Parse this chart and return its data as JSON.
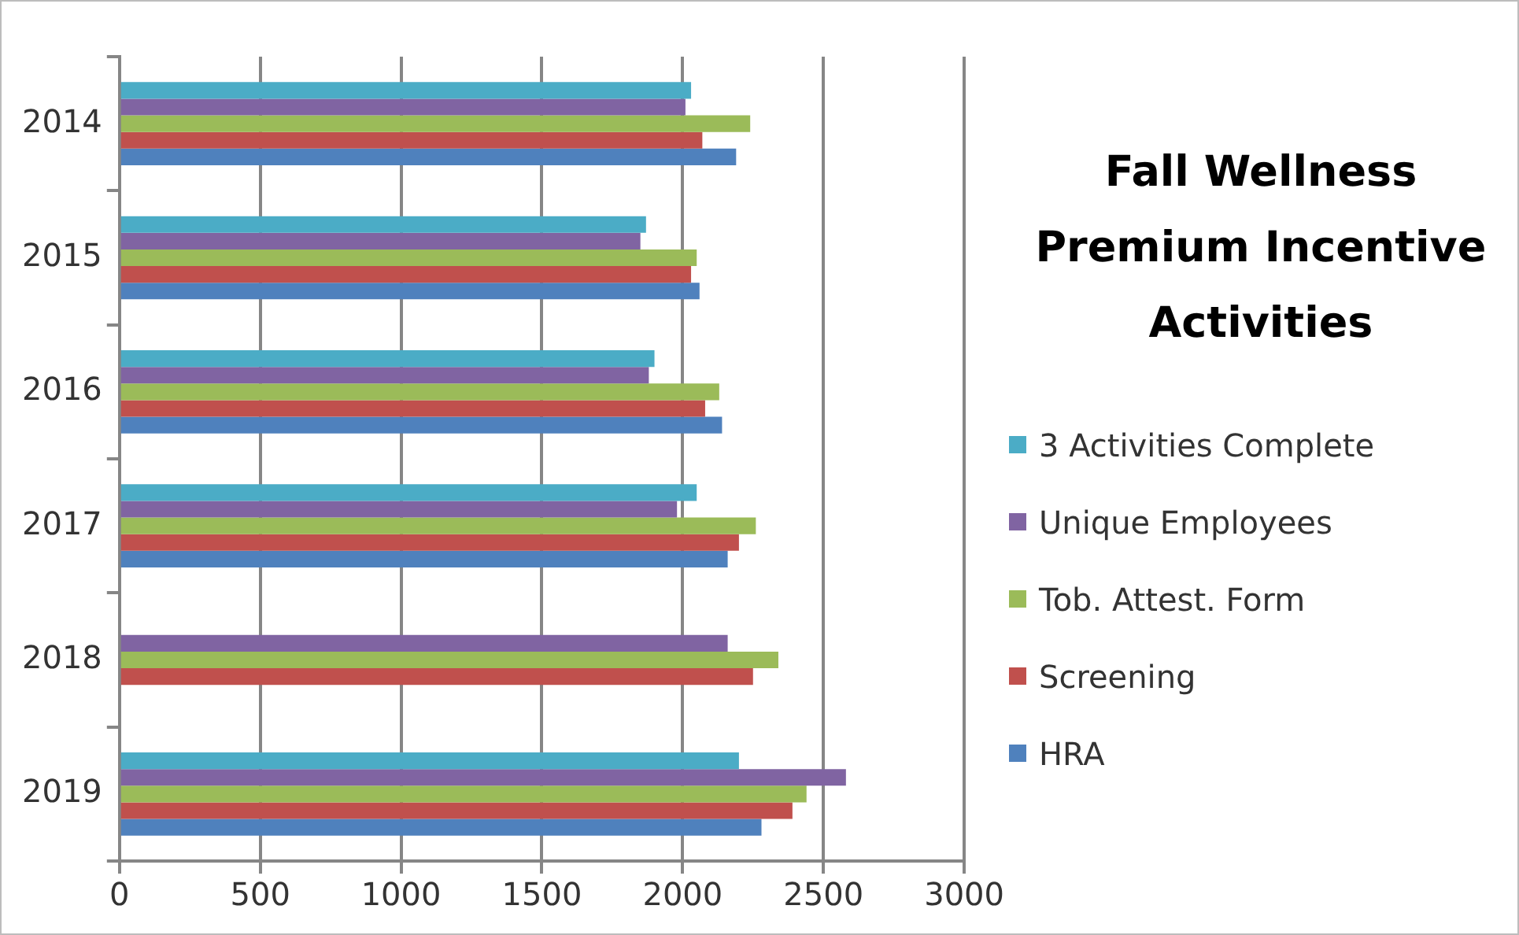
{
  "chart_data": {
    "type": "bar",
    "orientation": "horizontal",
    "title": "Fall Wellness Premium Incentive Activities",
    "categories": [
      "2014",
      "2015",
      "2016",
      "2017",
      "2018",
      "2019"
    ],
    "series": [
      {
        "name": "3 Activities Complete",
        "color": "#4bacc6",
        "values": [
          2030,
          1870,
          1900,
          2050,
          null,
          2200
        ]
      },
      {
        "name": "Unique Employees",
        "color": "#8064a2",
        "values": [
          2010,
          1850,
          1880,
          1980,
          2160,
          2580
        ]
      },
      {
        "name": "Tob. Attest. Form",
        "color": "#9bbb59",
        "values": [
          2240,
          2050,
          2130,
          2260,
          2340,
          2440
        ]
      },
      {
        "name": "Screening",
        "color": "#c0504d",
        "values": [
          2070,
          2030,
          2080,
          2200,
          2250,
          2390
        ]
      },
      {
        "name": "HRA",
        "color": "#4f81bd",
        "values": [
          2190,
          2060,
          2140,
          2160,
          null,
          2280
        ]
      }
    ],
    "xlim": [
      0,
      3000
    ],
    "xticks": [
      0,
      500,
      1000,
      1500,
      2000,
      2500,
      3000
    ],
    "grid": "x",
    "legend": "right"
  }
}
